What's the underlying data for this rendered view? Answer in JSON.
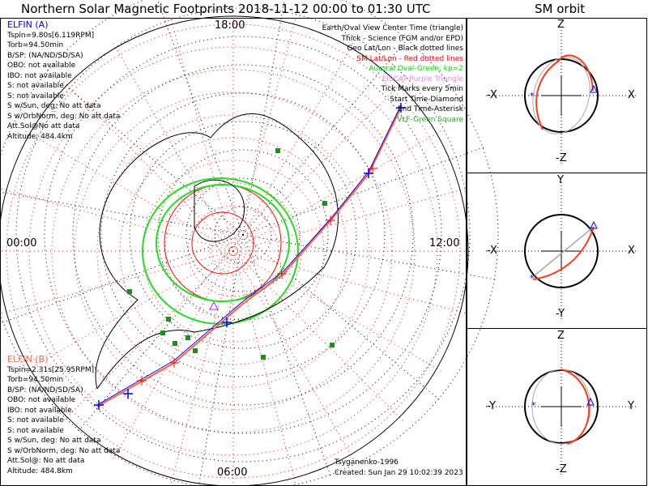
{
  "title": "Northern Solar Magnetic Footprints 2018-11-12 00:00 to 01:30 UTC",
  "side_title": "SM orbit",
  "mlt": {
    "top": "18:00",
    "left": "00:00",
    "right": "12:00",
    "bottom": "06:00"
  },
  "sat_a": {
    "name": "ELFIN (A)",
    "color": "#0000ff",
    "lines": [
      "Tspin=9.80s[6.119RPM]",
      "Torb=94.50min",
      "B/SP: (NA/ND/SD/SA)",
      "OBO: not available",
      "IBO: not available",
      "S: not available",
      "S: not available",
      "S w/Sun, deg: No att data",
      "S w/OrbNorm, deg: No att data",
      "Att.Sol@No att data",
      "Altitude: 484.4km"
    ]
  },
  "sat_b": {
    "name": "ELFIN (B)",
    "color": "#ff6347",
    "lines": [
      "Tspin=2.31s[25.95RPM]",
      "Torb=94.50min",
      "B/SP: (NA/ND/SD/SA)",
      "OBO: not available",
      "IBO: not available",
      "S: not available",
      "S: not available",
      "S w/Sun, deg: No att data",
      "S w/OrbNorm, deg: No att data",
      "Att.Sol@: No att data",
      "Altitude: 484.8km"
    ]
  },
  "legend": [
    {
      "text": "Earth/Oval View Center Time (triangle)",
      "color": "#000000"
    },
    {
      "text": "Thick - Science (FGM and/or EPD)",
      "color": "#000000"
    },
    {
      "text": "Geo Lat/Lon - Black dotted lines",
      "color": "#000000"
    },
    {
      "text": "SM Lat/Lon - Red dotted lines",
      "color": "#ff0000"
    },
    {
      "text": "Auroral Oval-Green, kp=2",
      "color": "#00dd00"
    },
    {
      "text": "EISCAT-Purple Triangle",
      "color": "#ee82ee"
    },
    {
      "text": "Tick Marks every 5min",
      "color": "#000000"
    },
    {
      "text": "Start Time-Diamond",
      "color": "#000000"
    },
    {
      "text": "End Time-Asterisk",
      "color": "#000000"
    },
    {
      "text": "VLF-Green Square",
      "color": "#22aa22"
    }
  ],
  "footer": {
    "model": "Tsyganenko-1996",
    "created": "Created: Sun Jan 29 10:02:39 2023"
  },
  "panels": [
    {
      "top": "Z",
      "bottom": "-Z",
      "left": "-X",
      "right": "X"
    },
    {
      "top": "Y",
      "bottom": "-Y",
      "left": "-X",
      "right": "X"
    },
    {
      "top": "Z",
      "bottom": "-Z",
      "left": "-Y",
      "right": "Y"
    }
  ]
}
